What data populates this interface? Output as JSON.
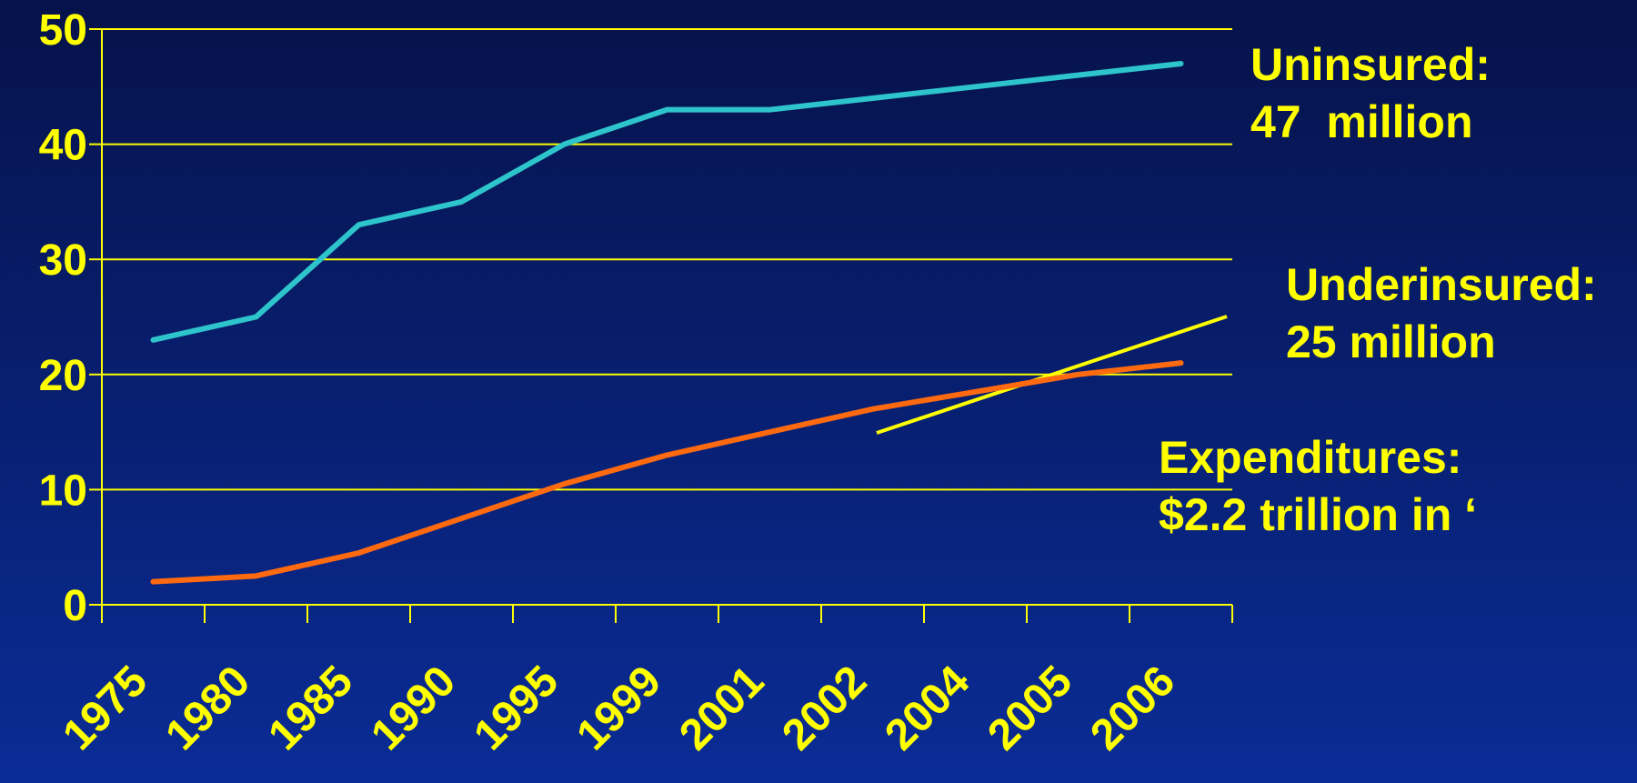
{
  "chart_data": {
    "type": "line",
    "categories": [
      "1975",
      "1980",
      "1985",
      "1990",
      "1995",
      "1999",
      "2001",
      "2002",
      "2004",
      "2005",
      "2006"
    ],
    "series": [
      {
        "color": "#2ec4cc",
        "values": [
          23,
          25,
          33,
          35,
          40,
          43,
          43,
          44,
          45,
          46,
          47
        ]
      },
      {
        "color": "#ff6a10",
        "values": [
          2,
          2.5,
          4.5,
          7.5,
          10.5,
          13,
          15,
          17,
          18.5,
          20,
          21
        ]
      }
    ],
    "ylim": [
      0,
      50
    ],
    "yticks": [
      0,
      10,
      20,
      30,
      40,
      50
    ],
    "grid": true,
    "annotations": [
      "Uninsured:",
      "47  million",
      "Underinsured:",
      "25 million",
      "Expenditures:",
      "$2.2 trillion in ‘"
    ]
  }
}
